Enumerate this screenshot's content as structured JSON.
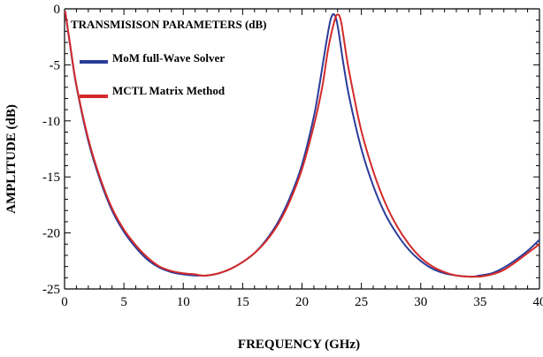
{
  "chart_data": {
    "type": "line",
    "title": "TRANSMISISON PARAMETERS (dB)",
    "xlabel": "FREQUENCY (GHz)",
    "ylabel": "AMPLITUDE (dB)",
    "xlim": [
      0,
      40
    ],
    "ylim": [
      -25,
      0
    ],
    "x_ticks": [
      0,
      5,
      10,
      15,
      20,
      25,
      30,
      35,
      40
    ],
    "y_ticks": [
      0,
      -5,
      -10,
      -15,
      -20,
      -25
    ],
    "x_tick_labels": [
      "0",
      "5",
      "10",
      "15",
      "20",
      "25",
      "30",
      "35",
      "40"
    ],
    "y_tick_labels": [
      "0",
      "-5",
      "-10",
      "-15",
      "-20",
      "-25"
    ],
    "grid": false,
    "legend_position": "top-left",
    "series": [
      {
        "name": "MoM full-Wave Solver",
        "color": "#2a3c9a",
        "x": [
          0.05,
          0.5,
          1,
          2,
          3,
          4,
          5,
          6,
          7,
          8,
          9,
          10,
          11,
          11.5,
          12,
          13,
          14,
          15,
          16,
          17,
          18,
          19,
          20,
          21,
          21.5,
          22,
          22.4,
          22.7,
          23,
          23.5,
          24,
          25,
          26,
          27,
          28,
          29,
          30,
          31,
          32,
          33,
          34,
          34.5,
          35,
          36,
          37,
          38,
          39,
          40
        ],
        "y": [
          -0.2,
          -3.5,
          -6.9,
          -11.8,
          -15.3,
          -18.0,
          -19.9,
          -21.3,
          -22.4,
          -23.1,
          -23.5,
          -23.7,
          -23.8,
          -23.8,
          -23.8,
          -23.6,
          -23.2,
          -22.6,
          -21.8,
          -20.6,
          -19.0,
          -16.8,
          -13.9,
          -9.6,
          -6.6,
          -3.3,
          -1.0,
          -0.5,
          -1.5,
          -5.0,
          -8.0,
          -12.5,
          -15.8,
          -18.3,
          -20.1,
          -21.5,
          -22.5,
          -23.2,
          -23.6,
          -23.8,
          -23.9,
          -23.9,
          -23.8,
          -23.6,
          -23.1,
          -22.4,
          -21.6,
          -20.6
        ]
      },
      {
        "name": "MCTL Matrix Method",
        "color": "#d42a2a",
        "x": [
          0.05,
          0.5,
          1,
          2,
          3,
          4,
          5,
          6,
          7,
          8,
          9,
          10,
          11,
          11.5,
          12,
          13,
          14,
          15,
          16,
          17,
          18,
          19,
          20,
          21,
          21.7,
          22.2,
          22.7,
          23.0,
          23.3,
          23.8,
          24.3,
          25,
          26,
          27,
          28,
          29,
          30,
          31,
          32,
          33,
          34,
          34.7,
          35,
          36,
          37,
          38,
          39,
          40
        ],
        "y": [
          -0.2,
          -3.4,
          -6.8,
          -11.6,
          -15.1,
          -17.8,
          -19.7,
          -21.1,
          -22.2,
          -23.0,
          -23.4,
          -23.6,
          -23.7,
          -23.8,
          -23.8,
          -23.6,
          -23.2,
          -22.6,
          -21.8,
          -20.7,
          -19.2,
          -17.1,
          -14.3,
          -10.4,
          -7.0,
          -3.6,
          -1.2,
          -0.5,
          -1.2,
          -4.6,
          -7.4,
          -10.9,
          -14.5,
          -17.3,
          -19.4,
          -21.0,
          -22.2,
          -23.0,
          -23.5,
          -23.8,
          -23.9,
          -23.9,
          -23.9,
          -23.7,
          -23.3,
          -22.6,
          -21.8,
          -21.0
        ]
      }
    ]
  }
}
